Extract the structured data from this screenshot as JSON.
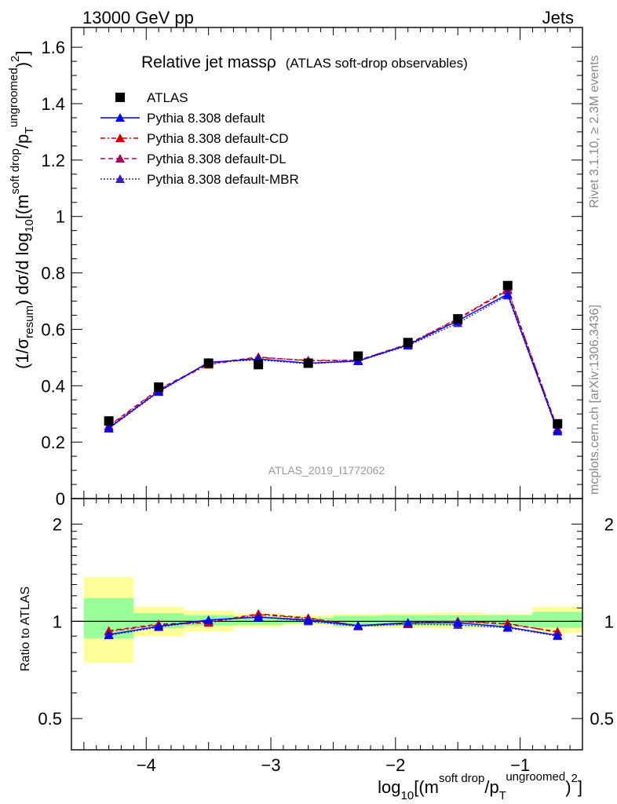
{
  "header": {
    "left": "13000 GeV pp",
    "right": "Jets"
  },
  "title": {
    "main": "Relative jet massρ",
    "sub": "(ATLAS soft-drop observables)"
  },
  "side_labels": {
    "rivet": "Rivet 3.1.10, ≥ 2.3M events",
    "mcplots": "mcplots.cern.ch [arXiv:1306.3436]"
  },
  "watermark": "ATLAS_2019_I1772062",
  "legend": [
    {
      "label": "ATLAS",
      "color": "#000000",
      "style": "none",
      "marker": "square"
    },
    {
      "label": "Pythia 8.308 default",
      "color": "#0000ff",
      "style": "solid",
      "marker": "triangle"
    },
    {
      "label": "Pythia 8.308 default-CD",
      "color": "#cc0000",
      "style": "dashdot",
      "marker": "triangle"
    },
    {
      "label": "Pythia 8.308 default-DL",
      "color": "#b0005a",
      "style": "dashed",
      "marker": "triangle"
    },
    {
      "label": "Pythia 8.308 default-MBR",
      "color": "#3a1fc0",
      "style": "dotted",
      "marker": "triangle"
    }
  ],
  "axes": {
    "main_ylabel": {
      "prefix": "(1/σ",
      "sub1": "resum",
      "mid": ") dσ/d log",
      "sub2": "10",
      "rest": "[(m",
      "sup1": "soft drop",
      "rest2": "/p",
      "sub3": "T",
      "sup2": "ungroomed",
      "rest3": ")",
      "sup3": "2",
      "end": "]"
    },
    "ratio_ylabel": "Ratio to ATLAS",
    "xlabel": {
      "pre": "log",
      "sub": "10",
      "mid": "[(m",
      "sup1": "soft drop",
      "mid2": "/p",
      "sub2": "T",
      "sup2": "ungroomed",
      "mid3": ")",
      "sup3": "2",
      "end": "]"
    },
    "main_yticks": [
      "0",
      "0.2",
      "0.4",
      "0.6",
      "0.8",
      "1",
      "1.2",
      "1.4",
      "1.6"
    ],
    "ratio_yticks": [
      "0.5",
      "1",
      "2"
    ],
    "xticks": [
      "−4",
      "−3",
      "−2",
      "−1"
    ]
  },
  "chart_data": {
    "type": "line",
    "x_range": [
      -4.6,
      -0.5
    ],
    "main_ylim": [
      0,
      1.67
    ],
    "ratio_ylim": [
      0.4,
      2.4
    ],
    "ratio_scale": "log",
    "bins": [
      [
        -4.5,
        -4.1
      ],
      [
        -4.1,
        -3.7
      ],
      [
        -3.7,
        -3.3
      ],
      [
        -3.3,
        -2.9
      ],
      [
        -2.9,
        -2.5
      ],
      [
        -2.5,
        -2.1
      ],
      [
        -2.1,
        -1.7
      ],
      [
        -1.7,
        -1.3
      ],
      [
        -1.3,
        -0.9
      ],
      [
        -0.9,
        -0.5
      ]
    ],
    "x": [
      -4.3,
      -3.9,
      -3.5,
      -3.1,
      -2.7,
      -2.3,
      -1.9,
      -1.5,
      -1.1,
      -0.7
    ],
    "series": [
      {
        "name": "ATLAS",
        "values": [
          0.275,
          0.395,
          0.48,
          0.475,
          0.48,
          0.505,
          0.553,
          0.637,
          0.755,
          0.265
        ]
      },
      {
        "name": "Pythia 8.308 default",
        "values": [
          0.25,
          0.38,
          0.483,
          0.495,
          0.48,
          0.488,
          0.545,
          0.63,
          0.725,
          0.24
        ]
      },
      {
        "name": "Pythia 8.308 default-CD",
        "values": [
          0.255,
          0.385,
          0.475,
          0.5,
          0.49,
          0.49,
          0.548,
          0.638,
          0.742,
          0.245
        ]
      },
      {
        "name": "Pythia 8.308 default-DL",
        "values": [
          0.258,
          0.388,
          0.478,
          0.502,
          0.488,
          0.49,
          0.546,
          0.636,
          0.738,
          0.248
        ]
      },
      {
        "name": "Pythia 8.308 default-MBR",
        "values": [
          0.248,
          0.378,
          0.482,
          0.492,
          0.478,
          0.487,
          0.542,
          0.622,
          0.72,
          0.238
        ]
      }
    ],
    "ratio_series": [
      {
        "name": "Pythia 8.308 default",
        "values": [
          0.91,
          0.965,
          1.01,
          1.03,
          1.01,
          0.97,
          0.99,
          0.99,
          0.96,
          0.905
        ]
      },
      {
        "name": "Pythia 8.308 default-CD",
        "values": [
          0.93,
          0.975,
          0.99,
          1.05,
          1.02,
          0.97,
          0.99,
          1.0,
          0.985,
          0.925
        ]
      },
      {
        "name": "Pythia 8.308 default-DL",
        "values": [
          0.935,
          0.98,
          0.995,
          1.055,
          1.025,
          0.97,
          0.985,
          1.0,
          0.98,
          0.93
        ]
      },
      {
        "name": "Pythia 8.308 default-MBR",
        "values": [
          0.905,
          0.96,
          1.005,
          1.035,
          1.0,
          0.965,
          0.98,
          0.975,
          0.955,
          0.9
        ]
      }
    ],
    "band_green": [
      [
        0.885,
        1.18
      ],
      [
        0.95,
        1.06
      ],
      [
        0.97,
        1.045
      ],
      [
        0.975,
        1.035
      ],
      [
        0.985,
        1.025
      ],
      [
        0.965,
        1.04
      ],
      [
        0.97,
        1.045
      ],
      [
        0.97,
        1.045
      ],
      [
        0.965,
        1.045
      ],
      [
        0.955,
        1.07
      ]
    ],
    "band_yellow": [
      [
        0.745,
        1.37
      ],
      [
        0.9,
        1.11
      ],
      [
        0.93,
        1.08
      ],
      [
        0.96,
        1.06
      ],
      [
        0.975,
        1.045
      ],
      [
        0.96,
        1.055
      ],
      [
        0.955,
        1.06
      ],
      [
        0.95,
        1.065
      ],
      [
        0.955,
        1.055
      ],
      [
        0.92,
        1.11
      ]
    ],
    "grid": false,
    "legend_position": "top-left"
  }
}
